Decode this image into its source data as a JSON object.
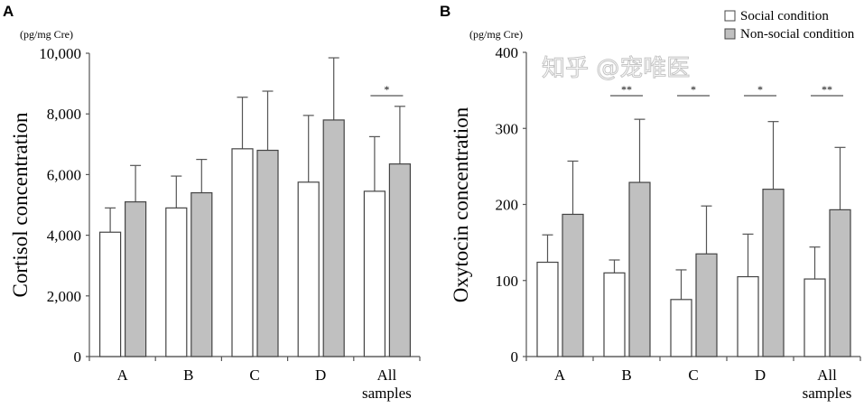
{
  "legend": {
    "items": [
      {
        "label": "Social condition",
        "color": "#ffffff"
      },
      {
        "label": "Non-social condition",
        "color": "#c0c0c0"
      }
    ],
    "placement": "top-right"
  },
  "watermark": "知乎 @宠唯医",
  "chart_data": [
    {
      "type": "bar",
      "panel": "A",
      "unit": "(pg/mg Cre)",
      "ylabel": "Cortisol concentration",
      "ylim": [
        0,
        10000
      ],
      "yticks": [
        0,
        2000,
        4000,
        6000,
        8000,
        10000
      ],
      "ytick_labels": [
        "0",
        "2,000",
        "4,000",
        "6,000",
        "8,000",
        "10,000"
      ],
      "categories": [
        "A",
        "B",
        "C",
        "D",
        "All samples"
      ],
      "series": [
        {
          "name": "Social condition",
          "values": [
            4100,
            4900,
            6850,
            5750,
            5450
          ],
          "error_top": [
            4900,
            5950,
            8550,
            7950,
            7250
          ]
        },
        {
          "name": "Non-social condition",
          "values": [
            5100,
            5400,
            6800,
            7800,
            6350
          ],
          "error_top": [
            6300,
            6500,
            8750,
            9850,
            8250
          ]
        }
      ],
      "significance": [
        "",
        "",
        "",
        "",
        "*"
      ],
      "grid": false
    },
    {
      "type": "bar",
      "panel": "B",
      "unit": "(pg/mg Cre)",
      "ylabel": "Oxytocin concentration",
      "ylim": [
        0,
        400
      ],
      "yticks": [
        0,
        100,
        200,
        300,
        400
      ],
      "ytick_labels": [
        "0",
        "100",
        "200",
        "300",
        "400"
      ],
      "categories": [
        "A",
        "B",
        "C",
        "D",
        "All samples"
      ],
      "series": [
        {
          "name": "Social condition",
          "values": [
            124,
            110,
            75,
            105,
            102
          ],
          "error_top": [
            160,
            127,
            114,
            161,
            144
          ]
        },
        {
          "name": "Non-social condition",
          "values": [
            187,
            229,
            135,
            220,
            193
          ],
          "error_top": [
            257,
            312,
            198,
            309,
            275
          ]
        }
      ],
      "significance": [
        "",
        "**",
        "*",
        "*",
        "**"
      ],
      "grid": false
    }
  ]
}
